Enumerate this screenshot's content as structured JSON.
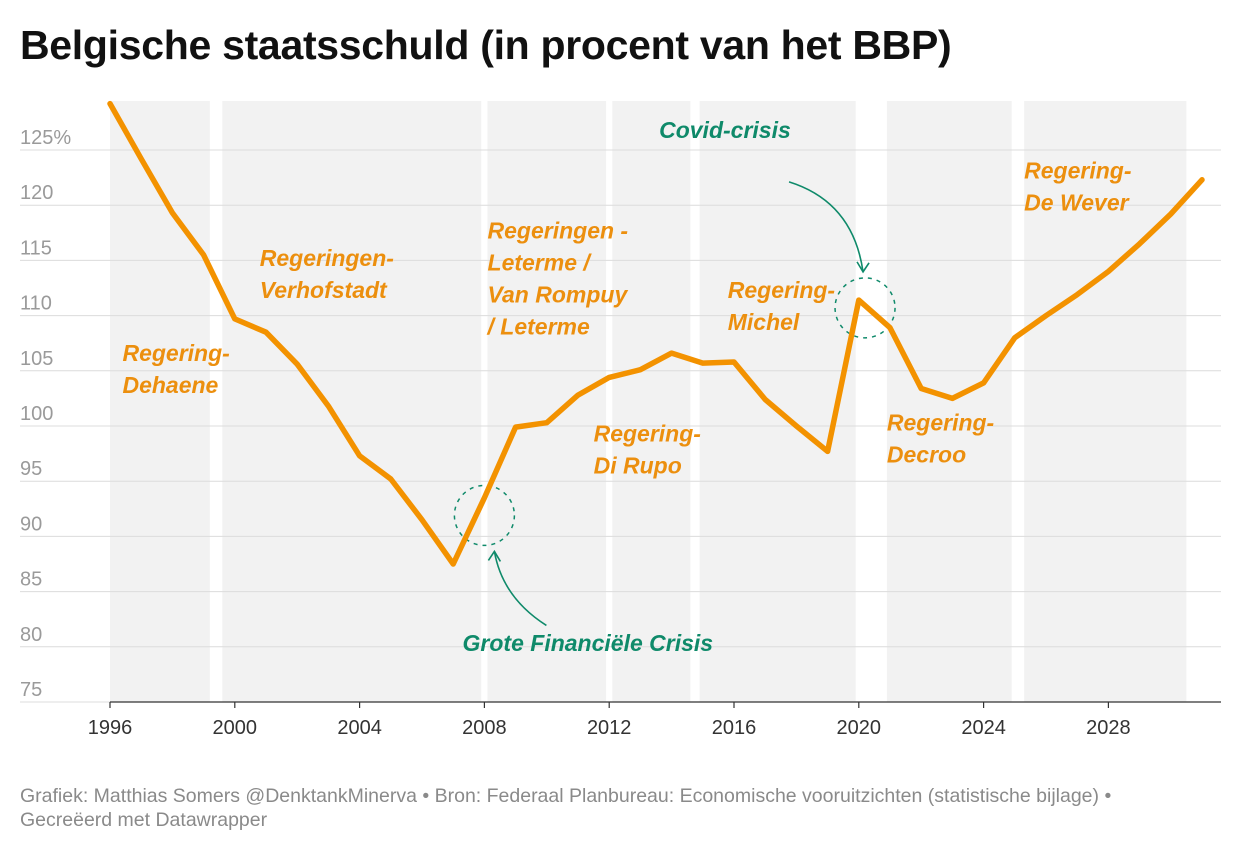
{
  "title": "Belgische staatsschuld (in procent van het BBP)",
  "footer": "Grafiek: Matthias Somers @DenktankMinerva • Bron: Federaal Planbureau: Economische vooruitzichten (statistische bijlage) • Gecreëerd met Datawrapper",
  "chart_data": {
    "type": "line",
    "title": "Belgische staatsschuld (in procent van het BBP)",
    "xlabel": "",
    "ylabel": "",
    "xlim": [
      1996,
      2032
    ],
    "ylim": [
      75,
      130
    ],
    "grid": true,
    "line_color": "#f39200",
    "x_ticks": [
      {
        "value": 1996,
        "label": "1996"
      },
      {
        "value": 2000,
        "label": "2000"
      },
      {
        "value": 2004,
        "label": "2004"
      },
      {
        "value": 2008,
        "label": "2008"
      },
      {
        "value": 2012,
        "label": "2012"
      },
      {
        "value": 2016,
        "label": "2016"
      },
      {
        "value": 2020,
        "label": "2020"
      },
      {
        "value": 2024,
        "label": "2024"
      },
      {
        "value": 2028,
        "label": "2028"
      }
    ],
    "y_ticks": [
      {
        "value": 125,
        "label": "125%"
      },
      {
        "value": 120,
        "label": "120"
      },
      {
        "value": 115,
        "label": "115"
      },
      {
        "value": 110,
        "label": "110"
      },
      {
        "value": 105,
        "label": "105"
      },
      {
        "value": 100,
        "label": "100"
      },
      {
        "value": 95,
        "label": "95"
      },
      {
        "value": 90,
        "label": "90"
      },
      {
        "value": 85,
        "label": "85"
      },
      {
        "value": 80,
        "label": "80"
      },
      {
        "value": 75,
        "label": "75"
      }
    ],
    "series": [
      {
        "x": [
          1996,
          1997,
          1998,
          1999,
          2000,
          2001,
          2002,
          2003,
          2004,
          2005,
          2006,
          2007,
          2008,
          2009,
          2010,
          2011,
          2012,
          2013,
          2014,
          2015,
          2016,
          2017,
          2018,
          2019,
          2020,
          2021,
          2022,
          2023,
          2024,
          2025,
          2026,
          2027,
          2028,
          2029,
          2030,
          2031
        ],
        "values": [
          129.2,
          124.2,
          119.3,
          115.5,
          109.7,
          108.5,
          105.6,
          101.8,
          97.3,
          95.2,
          91.5,
          87.5,
          93.5,
          99.9,
          100.3,
          102.8,
          104.4,
          105.1,
          106.6,
          105.7,
          105.8,
          102.4,
          100.0,
          97.7,
          111.4,
          108.9,
          103.4,
          102.5,
          103.9,
          108.0,
          110.0,
          111.9,
          114.0,
          116.5,
          119.2,
          122.3
        ]
      }
    ],
    "periods": [
      {
        "start": 1996,
        "end": 1999.2
      },
      {
        "start": 1999.6,
        "end": 2007.9
      },
      {
        "start": 2008.1,
        "end": 2011.9
      },
      {
        "start": 2012.1,
        "end": 2014.6
      },
      {
        "start": 2014.9,
        "end": 2019.9
      },
      {
        "start": 2020.9,
        "end": 2024.9
      },
      {
        "start": 2025.3,
        "end": 2030.5
      }
    ],
    "government_labels": [
      {
        "lines": [
          "Regering-",
          "Dehaene"
        ],
        "x": 1996.4,
        "y": 105.9
      },
      {
        "lines": [
          "Regeringen-",
          "Verhofstadt"
        ],
        "x": 2000.8,
        "y": 114.5
      },
      {
        "lines": [
          "Regeringen -",
          "Leterme /",
          "Van Rompuy",
          "/ Leterme"
        ],
        "x": 2008.1,
        "y": 117.0
      },
      {
        "lines": [
          "Regering-",
          "Di Rupo"
        ],
        "x": 2011.5,
        "y": 98.6
      },
      {
        "lines": [
          "Regering-",
          "Michel"
        ],
        "x": 2015.8,
        "y": 111.6
      },
      {
        "lines": [
          "Regering-",
          "Decroo"
        ],
        "x": 2020.9,
        "y": 99.6
      },
      {
        "lines": [
          "Regering-",
          "De Wever"
        ],
        "x": 2025.3,
        "y": 122.4
      }
    ],
    "crisis_annotations": [
      {
        "label": "Grote Financiële Crisis",
        "x": 2007.3,
        "y": 79.6,
        "circle_x": 2008.0,
        "circle_y": 91.9
      },
      {
        "label": "Covid-crisis",
        "x": 2013.6,
        "y": 126.1,
        "circle_x": 2020.2,
        "circle_y": 110.7
      }
    ]
  }
}
